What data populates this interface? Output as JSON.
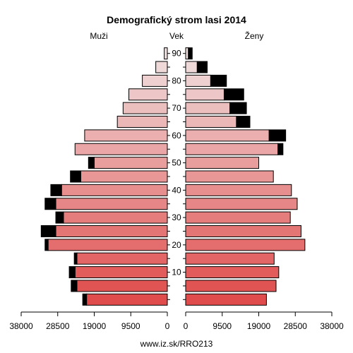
{
  "chart_data": {
    "type": "bar",
    "title": "Demografický strom lasi 2014",
    "left_label": "Muži",
    "center_label": "Vek",
    "right_label": "Ženy",
    "source": "www.iz.sk/RRO213",
    "xlim": [
      0,
      38000
    ],
    "x_ticks": [
      "38000",
      "28500",
      "19000",
      "9500",
      "0",
      "0",
      "9500",
      "19000",
      "28500",
      "38000"
    ],
    "age_ticks": [
      "10",
      "20",
      "30",
      "40",
      "50",
      "60",
      "70",
      "80",
      "90"
    ],
    "age_groups": [
      "0-4",
      "5-9",
      "10-14",
      "15-19",
      "20-24",
      "25-29",
      "30-34",
      "35-39",
      "40-44",
      "45-49",
      "50-54",
      "55-59",
      "60-64",
      "65-69",
      "70-74",
      "75-79",
      "80-84",
      "85-89",
      "90+"
    ],
    "series": [
      {
        "name": "Muži",
        "values": [
          21000,
          23500,
          24000,
          23500,
          31000,
          29000,
          27000,
          29000,
          27500,
          22500,
          19000,
          24000,
          21500,
          13000,
          11500,
          10000,
          6500,
          3000,
          800
        ],
        "excess": [
          1000,
          1500,
          1500,
          700,
          800,
          3800,
          2000,
          2800,
          2800,
          2700,
          1500,
          0,
          0,
          0,
          0,
          0,
          0,
          0,
          0
        ]
      },
      {
        "name": "Ženy",
        "values": [
          21000,
          23500,
          24200,
          23000,
          31000,
          30000,
          27200,
          29000,
          27500,
          22800,
          19000,
          24000,
          21700,
          13200,
          11500,
          10000,
          6500,
          3000,
          700
        ],
        "excess": [
          0,
          0,
          0,
          0,
          0,
          0,
          0,
          0,
          0,
          0,
          0,
          1300,
          4300,
          3500,
          4300,
          5100,
          4100,
          2600,
          1000
        ]
      }
    ],
    "colors": {
      "bar_bottom": "#e04c4c",
      "bar_top": "#f0e0e0",
      "excess": "#000000",
      "axis": "#000000"
    }
  }
}
